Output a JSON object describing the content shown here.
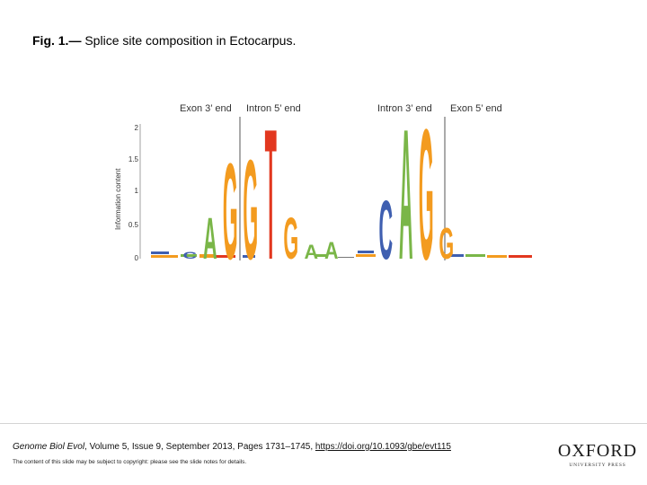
{
  "caption": {
    "label": "Fig. 1.—",
    "text": " Splice site composition in Ectocarpus."
  },
  "figure": {
    "sections": [
      "Exon 3’ end",
      "Intron 5’ end",
      "Intron 3’ end",
      "Exon 5’ end"
    ],
    "ylabel": "Information content",
    "yticks": [
      "2",
      "1.5",
      "1",
      "0.5",
      "0"
    ],
    "colors": {
      "A": "#7ab648",
      "C": "#3f5fb0",
      "G": "#f39b1f",
      "T": "#e2371f",
      "divider": "#555555"
    },
    "motif_5": {
      "letters": [
        "C",
        "A",
        "G",
        "G",
        "T",
        "G",
        "A",
        "A"
      ],
      "info": [
        0.1,
        0.6,
        1.4,
        1.45,
        1.9,
        0.6,
        0.2,
        0.25
      ]
    },
    "motif_3": {
      "letters": [
        "C",
        "A",
        "G",
        "G"
      ],
      "info": [
        0.85,
        1.9,
        1.9,
        0.45
      ]
    }
  },
  "citation": {
    "journal": "Genome Biol Evol",
    "details": ", Volume 5, Issue 9, September 2013, Pages 1731–1745, ",
    "doi": "https://doi.org/10.1093/gbe/evt115"
  },
  "notice": "The content of this slide may be subject to copyright: please see the slide notes for details.",
  "publisher": {
    "name": "OXFORD",
    "sub": "UNIVERSITY PRESS"
  }
}
